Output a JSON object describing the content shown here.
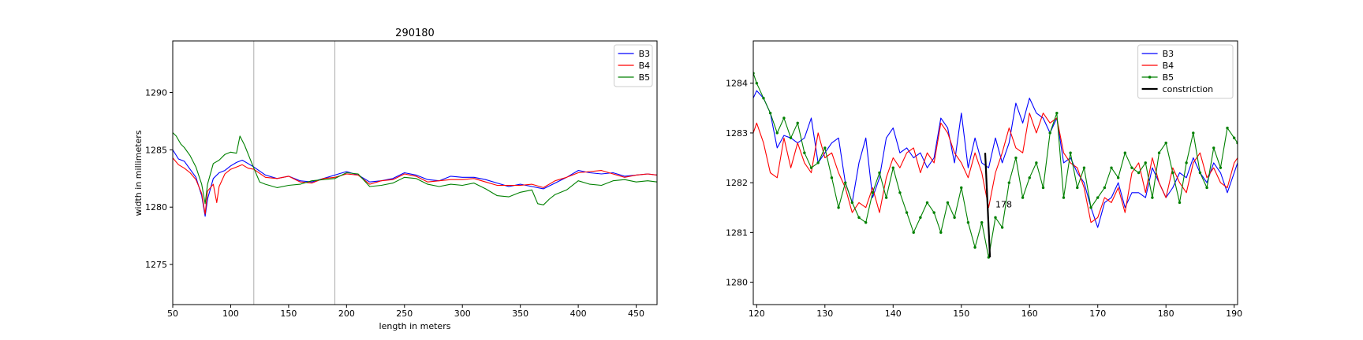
{
  "chart_data": [
    {
      "type": "line",
      "title": "290180",
      "xlabel": "length in meters",
      "ylabel": "width in millimeters",
      "xlim": [
        50,
        468
      ],
      "ylim": [
        1271.5,
        1294.5
      ],
      "xticks": [
        50,
        100,
        150,
        200,
        250,
        300,
        350,
        400,
        450
      ],
      "yticks": [
        1275,
        1280,
        1285,
        1290
      ],
      "vlines": [
        120,
        190
      ],
      "grid": false,
      "legend_position": "upper right",
      "series": [
        {
          "name": "B3",
          "color": "#0000ff",
          "x": [
            50,
            55,
            60,
            65,
            70,
            75,
            78,
            80,
            85,
            90,
            95,
            100,
            105,
            110,
            115,
            120,
            130,
            140,
            150,
            160,
            170,
            180,
            190,
            200,
            210,
            220,
            230,
            240,
            250,
            260,
            270,
            280,
            290,
            300,
            310,
            320,
            330,
            340,
            350,
            360,
            370,
            380,
            390,
            400,
            410,
            420,
            430,
            440,
            450,
            460,
            468
          ],
          "y": [
            1285,
            1284.2,
            1284,
            1283.3,
            1282.6,
            1281,
            1279.2,
            1280.7,
            1282.5,
            1283,
            1283.2,
            1283.6,
            1283.9,
            1284.1,
            1283.8,
            1283.5,
            1282.8,
            1282.5,
            1282.7,
            1282.3,
            1282.2,
            1282.5,
            1282.8,
            1283.1,
            1282.8,
            1282.2,
            1282.3,
            1282.5,
            1283,
            1282.8,
            1282.4,
            1282.3,
            1282.7,
            1282.6,
            1282.6,
            1282.4,
            1282.1,
            1281.8,
            1282,
            1281.8,
            1281.6,
            1282.1,
            1282.6,
            1283.2,
            1283,
            1282.9,
            1283,
            1282.7,
            1282.8,
            1282.9,
            1282.8
          ]
        },
        {
          "name": "B4",
          "color": "#ff0000",
          "x": [
            50,
            55,
            60,
            65,
            70,
            75,
            78,
            80,
            85,
            88,
            90,
            95,
            100,
            105,
            110,
            115,
            120,
            130,
            140,
            150,
            160,
            170,
            180,
            190,
            200,
            210,
            220,
            230,
            240,
            250,
            260,
            270,
            280,
            290,
            300,
            310,
            320,
            330,
            340,
            350,
            360,
            370,
            380,
            390,
            400,
            410,
            420,
            430,
            440,
            450,
            460,
            468
          ],
          "y": [
            1284.3,
            1283.7,
            1283.4,
            1283,
            1282.4,
            1281.2,
            1279.4,
            1281.4,
            1282,
            1280.4,
            1281.8,
            1282.9,
            1283.3,
            1283.5,
            1283.7,
            1283.4,
            1283.3,
            1282.6,
            1282.5,
            1282.7,
            1282.2,
            1282.1,
            1282.5,
            1282.6,
            1282.9,
            1282.8,
            1282,
            1282.3,
            1282.4,
            1282.9,
            1282.7,
            1282.2,
            1282.3,
            1282.4,
            1282.4,
            1282.5,
            1282.2,
            1281.9,
            1281.9,
            1281.9,
            1282,
            1281.7,
            1282.3,
            1282.6,
            1283,
            1283.1,
            1283.2,
            1282.9,
            1282.6,
            1282.8,
            1282.9,
            1282.8
          ]
        },
        {
          "name": "B5",
          "color": "#008000",
          "x": [
            50,
            53,
            57,
            60,
            65,
            70,
            75,
            78,
            80,
            85,
            90,
            95,
            100,
            105,
            108,
            112,
            116,
            120,
            125,
            130,
            140,
            150,
            160,
            170,
            180,
            190,
            200,
            210,
            220,
            230,
            240,
            250,
            260,
            270,
            280,
            290,
            300,
            310,
            320,
            330,
            340,
            350,
            360,
            365,
            370,
            375,
            380,
            390,
            400,
            410,
            420,
            430,
            440,
            450,
            460,
            468
          ],
          "y": [
            1286.5,
            1286.2,
            1285.5,
            1285.2,
            1284.5,
            1283.5,
            1282,
            1280.3,
            1282,
            1283.8,
            1284.1,
            1284.6,
            1284.8,
            1284.7,
            1286.2,
            1285.4,
            1284.4,
            1283.4,
            1282.2,
            1282,
            1281.7,
            1281.9,
            1282,
            1282.3,
            1282.4,
            1282.5,
            1283,
            1282.9,
            1281.8,
            1281.9,
            1282.1,
            1282.6,
            1282.5,
            1282,
            1281.8,
            1282,
            1281.9,
            1282.1,
            1281.6,
            1281,
            1280.9,
            1281.3,
            1281.5,
            1280.3,
            1280.2,
            1280.7,
            1281.1,
            1281.5,
            1282.3,
            1282,
            1281.9,
            1282.3,
            1282.4,
            1282.2,
            1282.3,
            1282.2
          ]
        }
      ]
    },
    {
      "type": "line",
      "title": "",
      "xlabel": "",
      "ylabel": "",
      "xlim": [
        119.5,
        190.5
      ],
      "ylim": [
        1279.55,
        1284.85
      ],
      "xticks": [
        120,
        130,
        140,
        150,
        160,
        170,
        180,
        190
      ],
      "yticks": [
        1280,
        1281,
        1282,
        1283,
        1284
      ],
      "grid": false,
      "legend_position": "upper right",
      "annotations": [
        {
          "text": "178",
          "x": 155,
          "y": 1281.5
        }
      ],
      "series": [
        {
          "name": "B3",
          "color": "#0000ff",
          "marker": "none",
          "x": [
            119.5,
            120,
            121,
            122,
            123,
            124,
            125,
            126,
            127,
            128,
            129,
            130,
            131,
            132,
            133,
            134,
            135,
            136,
            137,
            138,
            139,
            140,
            141,
            142,
            143,
            144,
            145,
            146,
            147,
            148,
            149,
            150,
            151,
            152,
            153,
            154,
            155,
            156,
            157,
            158,
            159,
            160,
            161,
            162,
            163,
            164,
            165,
            166,
            167,
            168,
            169,
            170,
            171,
            172,
            173,
            174,
            175,
            176,
            177,
            178,
            179,
            180,
            181,
            182,
            183,
            184,
            185,
            186,
            187,
            188,
            189,
            190,
            190.5
          ],
          "y": [
            1283.7,
            1283.85,
            1283.7,
            1283.4,
            1282.7,
            1282.95,
            1282.9,
            1282.8,
            1282.9,
            1283.3,
            1282.4,
            1282.6,
            1282.8,
            1282.9,
            1282,
            1281.6,
            1282.4,
            1282.9,
            1281.7,
            1282.1,
            1282.9,
            1283.1,
            1282.6,
            1282.7,
            1282.5,
            1282.6,
            1282.3,
            1282.5,
            1283.3,
            1283.1,
            1282.4,
            1283.4,
            1282.3,
            1282.9,
            1282.4,
            1282.3,
            1282.9,
            1282.4,
            1282.8,
            1283.6,
            1283.2,
            1283.7,
            1283.4,
            1283.3,
            1283,
            1283.3,
            1282.4,
            1282.5,
            1282.2,
            1282,
            1281.5,
            1281.1,
            1281.6,
            1281.7,
            1282,
            1281.5,
            1281.8,
            1281.8,
            1281.7,
            1282.3,
            1282,
            1281.7,
            1281.9,
            1282.2,
            1282.1,
            1282.5,
            1282.2,
            1282,
            1282.4,
            1282.2,
            1281.8,
            1282.2,
            1282.4
          ]
        },
        {
          "name": "B4",
          "color": "#ff0000",
          "marker": "none",
          "x": [
            119.5,
            120,
            121,
            122,
            123,
            124,
            125,
            126,
            127,
            128,
            129,
            130,
            131,
            132,
            133,
            134,
            135,
            136,
            137,
            138,
            139,
            140,
            141,
            142,
            143,
            144,
            145,
            146,
            147,
            148,
            149,
            150,
            151,
            152,
            153,
            154,
            155,
            156,
            157,
            158,
            159,
            160,
            161,
            162,
            163,
            164,
            165,
            166,
            167,
            168,
            169,
            170,
            171,
            172,
            173,
            174,
            175,
            176,
            177,
            178,
            179,
            180,
            181,
            182,
            183,
            184,
            185,
            186,
            187,
            188,
            189,
            190,
            190.5
          ],
          "y": [
            1283,
            1283.2,
            1282.8,
            1282.2,
            1282.1,
            1282.9,
            1282.3,
            1282.8,
            1282.4,
            1282.2,
            1283,
            1282.5,
            1282.6,
            1282.2,
            1281.9,
            1281.4,
            1281.6,
            1281.5,
            1281.9,
            1281.4,
            1282.1,
            1282.5,
            1282.3,
            1282.6,
            1282.7,
            1282.2,
            1282.6,
            1282.4,
            1283.2,
            1283,
            1282.6,
            1282.4,
            1282.1,
            1282.6,
            1282.2,
            1281.5,
            1282.2,
            1282.6,
            1283.1,
            1282.7,
            1282.6,
            1283.4,
            1283,
            1283.4,
            1283.2,
            1283.3,
            1282.6,
            1282.4,
            1282.3,
            1281.9,
            1281.2,
            1281.3,
            1281.7,
            1281.6,
            1281.9,
            1281.4,
            1282.2,
            1282.4,
            1281.8,
            1282.5,
            1282,
            1281.7,
            1282.3,
            1282,
            1281.8,
            1282.4,
            1282.6,
            1282.1,
            1282.3,
            1282.0,
            1281.9,
            1282.4,
            1282.5
          ]
        },
        {
          "name": "B5",
          "color": "#008000",
          "marker": "dot",
          "x": [
            119.5,
            120,
            121,
            122,
            123,
            124,
            125,
            126,
            127,
            128,
            129,
            130,
            131,
            132,
            133,
            134,
            135,
            136,
            137,
            138,
            139,
            140,
            141,
            142,
            143,
            144,
            145,
            146,
            147,
            148,
            149,
            150,
            151,
            152,
            153,
            154,
            155,
            156,
            157,
            158,
            159,
            160,
            161,
            162,
            163,
            164,
            165,
            166,
            167,
            168,
            169,
            170,
            171,
            172,
            173,
            174,
            175,
            176,
            177,
            178,
            179,
            180,
            181,
            182,
            183,
            184,
            185,
            186,
            187,
            188,
            189,
            190,
            190.5
          ],
          "y": [
            1284.2,
            1284.0,
            1283.7,
            1283.4,
            1283.0,
            1283.3,
            1282.9,
            1283.2,
            1282.6,
            1282.3,
            1282.4,
            1282.7,
            1282.1,
            1281.5,
            1282.0,
            1281.6,
            1281.3,
            1281.2,
            1281.8,
            1282.2,
            1281.7,
            1282.3,
            1281.8,
            1281.4,
            1281.0,
            1281.3,
            1281.6,
            1281.4,
            1281.0,
            1281.6,
            1281.3,
            1281.9,
            1281.2,
            1280.7,
            1281.2,
            1280.5,
            1281.3,
            1281.1,
            1282.0,
            1282.5,
            1281.7,
            1282.1,
            1282.4,
            1281.9,
            1283.0,
            1283.4,
            1281.7,
            1282.6,
            1281.9,
            1282.3,
            1281.5,
            1281.7,
            1281.9,
            1282.3,
            1282.1,
            1282.6,
            1282.3,
            1282.2,
            1282.4,
            1281.7,
            1282.6,
            1282.8,
            1282.2,
            1281.6,
            1282.4,
            1283.0,
            1282.2,
            1281.9,
            1282.7,
            1282.3,
            1283.1,
            1282.9,
            1282.8
          ]
        },
        {
          "name": "constriction",
          "color": "#000000",
          "marker": "none",
          "linewidth": "thick",
          "x": [
            153.5,
            154.2
          ],
          "y": [
            1282.6,
            1280.5
          ]
        }
      ]
    }
  ]
}
